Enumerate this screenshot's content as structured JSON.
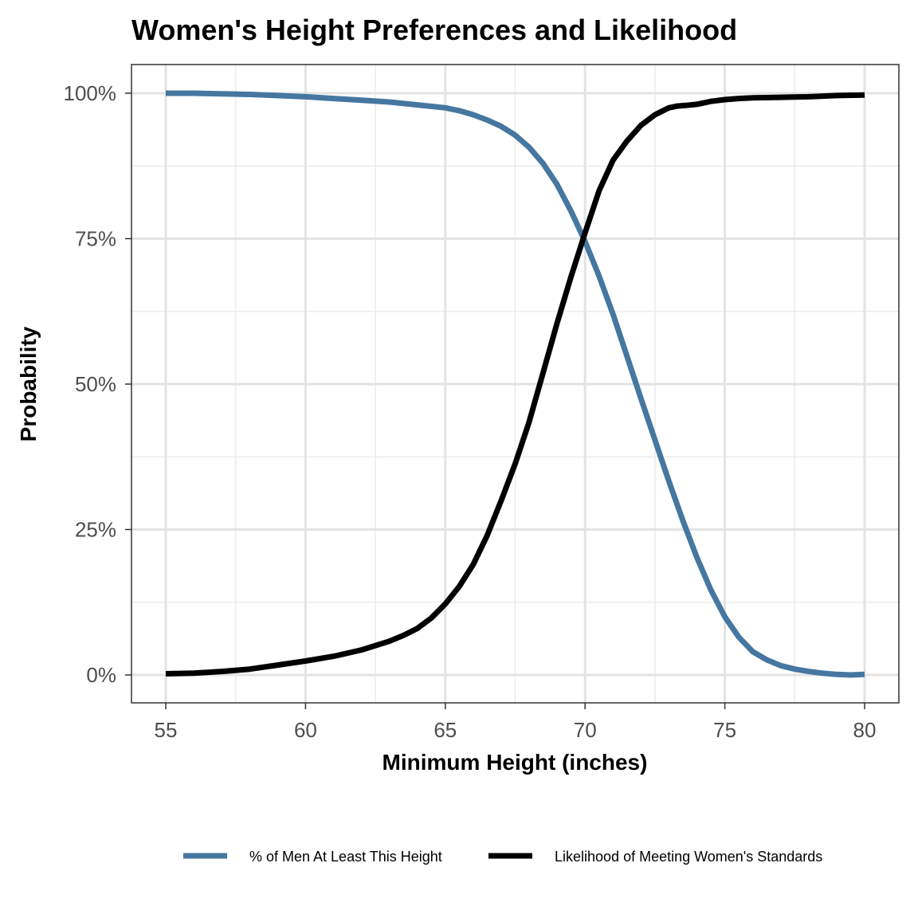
{
  "chart_data": {
    "type": "line",
    "title": "Women's Height Preferences and Likelihood",
    "xlabel": "Minimum Height (inches)",
    "ylabel": "Probability",
    "xlim": [
      55,
      80
    ],
    "ylim": [
      0,
      1
    ],
    "x_ticks": [
      55,
      60,
      65,
      70,
      75,
      80
    ],
    "x_tick_labels": [
      "55",
      "60",
      "65",
      "70",
      "75",
      "80"
    ],
    "y_ticks": [
      0,
      0.25,
      0.5,
      0.75,
      1.0
    ],
    "y_tick_labels": [
      "0%",
      "25%",
      "50%",
      "75%",
      "100%"
    ],
    "grid": true,
    "legend_position": "bottom",
    "series": [
      {
        "name": "% of Men At Least This Height",
        "color": "#4577a0",
        "x": [
          55,
          56,
          57,
          58,
          59,
          60,
          61,
          62,
          63,
          64,
          65,
          65.5,
          66,
          66.5,
          67,
          67.5,
          68,
          68.5,
          69,
          69.5,
          70,
          70.5,
          71,
          71.5,
          72,
          72.5,
          73,
          73.5,
          74,
          74.5,
          75,
          75.5,
          76,
          76.5,
          77,
          77.5,
          78,
          78.5,
          79,
          79.5,
          80
        ],
        "values": [
          1.0,
          1.0,
          0.999,
          0.998,
          0.996,
          0.994,
          0.991,
          0.988,
          0.985,
          0.98,
          0.975,
          0.97,
          0.963,
          0.954,
          0.943,
          0.928,
          0.907,
          0.879,
          0.843,
          0.797,
          0.745,
          0.686,
          0.62,
          0.548,
          0.475,
          0.404,
          0.333,
          0.265,
          0.202,
          0.146,
          0.1,
          0.065,
          0.04,
          0.026,
          0.016,
          0.01,
          0.006,
          0.003,
          0.001,
          0.0,
          0.001
        ]
      },
      {
        "name": "Likelihood of Meeting Women's Standards",
        "color": "#000000",
        "x": [
          55,
          56,
          57,
          58,
          59,
          60,
          61,
          62,
          63,
          63.5,
          64,
          64.5,
          65,
          65.5,
          66,
          66.5,
          67,
          67.5,
          68,
          68.5,
          69,
          69.5,
          70,
          70.5,
          71,
          71.5,
          72,
          72.5,
          73,
          73.3,
          73.6,
          74,
          74.5,
          75,
          75.5,
          76,
          77,
          78,
          79,
          80
        ],
        "values": [
          0.002,
          0.003,
          0.006,
          0.01,
          0.017,
          0.024,
          0.032,
          0.043,
          0.058,
          0.068,
          0.08,
          0.098,
          0.122,
          0.152,
          0.19,
          0.24,
          0.3,
          0.363,
          0.435,
          0.52,
          0.605,
          0.685,
          0.76,
          0.832,
          0.885,
          0.918,
          0.945,
          0.963,
          0.975,
          0.978,
          0.979,
          0.981,
          0.986,
          0.989,
          0.991,
          0.992,
          0.993,
          0.994,
          0.996,
          0.997
        ]
      }
    ]
  }
}
